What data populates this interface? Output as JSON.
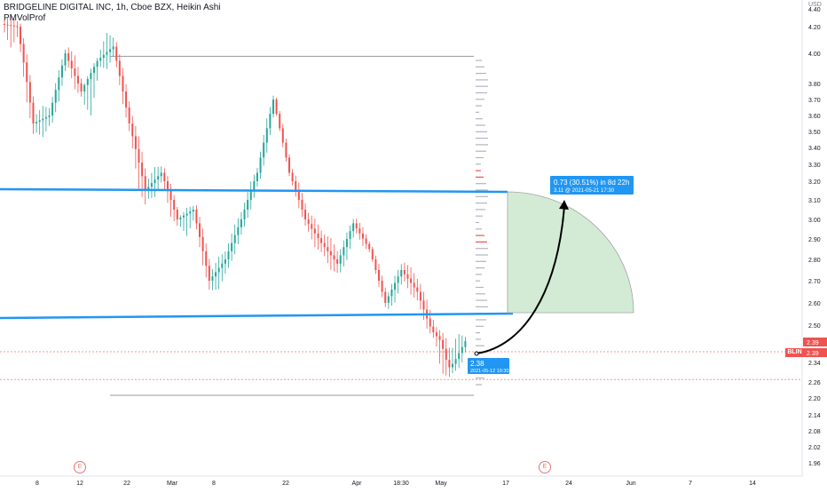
{
  "header": {
    "title": "BRIDGELINE DIGITAL INC, 1h, Cboe BZX, Heikin Ashi",
    "indicator": "PMVolProf"
  },
  "colors": {
    "up": "#26a69a",
    "down": "#ef5350",
    "channel": "#2196f3",
    "target_zone": "#c8e6c9",
    "label_bg": "#2196f3",
    "price_tag": "#ef5350"
  },
  "chart_data": {
    "type": "candlestick",
    "title": "BRIDGELINE DIGITAL INC, 1h, Cboe BZX, Heikin Ashi",
    "price_axis": {
      "unit": "USD",
      "ticks": [
        "4.40",
        "4.20",
        "4.00",
        "3.80",
        "3.70",
        "3.60",
        "3.50",
        "3.40",
        "3.30",
        "3.20",
        "3.10",
        "3.00",
        "2.90",
        "2.80",
        "2.70",
        "2.60",
        "2.50",
        "2.39",
        "2.34",
        "2.26",
        "2.20",
        "2.14",
        "2.08",
        "2.02",
        "1.96"
      ],
      "scale": "log",
      "ylim": [
        1.93,
        4.5
      ]
    },
    "time_axis": {
      "ticks": [
        "8",
        "12",
        "22",
        "Mar",
        "8",
        "22",
        "Apr",
        "18:30",
        "May",
        "17",
        "24",
        "Jun",
        "7",
        "14"
      ]
    },
    "levels": {
      "range_high": 3.98,
      "range_low": 2.21,
      "resistance": 3.15,
      "support": 2.55,
      "dashed_level": 2.27
    },
    "last_price": {
      "symbol": "BLIN",
      "value": "2.39",
      "label": "BLIN"
    },
    "projection": {
      "start_label_price": "2.38",
      "start_label_date": "2021-05-12 19:30",
      "end_label_main": "0.73 (30.51%) in 8d 22h",
      "end_label_sub": "3.11 @ 2021-05-21 17:30",
      "start_price": 2.38,
      "end_price": 3.11
    },
    "path": [
      [
        "4.23",
        "4.40",
        "3.90",
        "4.20"
      ],
      [
        "4.20",
        "4.25",
        "3.35",
        "3.55"
      ],
      [
        "3.55",
        "3.70",
        "3.40",
        "3.60"
      ],
      [
        "3.60",
        "4.05",
        "3.50",
        "4.00"
      ],
      [
        "4.00",
        "4.15",
        "3.60",
        "3.75"
      ],
      [
        "3.75",
        "4.00",
        "3.30",
        "3.95"
      ],
      [
        "3.95",
        "4.30",
        "3.80",
        "4.05"
      ],
      [
        "4.05",
        "4.10",
        "3.45",
        "3.55"
      ],
      [
        "3.55",
        "3.65",
        "2.90",
        "3.15"
      ],
      [
        "3.15",
        "3.35",
        "3.05",
        "3.25"
      ],
      [
        "3.25",
        "3.30",
        "2.85",
        "3.00"
      ],
      [
        "3.00",
        "3.10",
        "2.80",
        "3.05"
      ],
      [
        "3.05",
        "3.10",
        "2.60",
        "2.70"
      ],
      [
        "2.70",
        "2.85",
        "2.60",
        "2.80"
      ],
      [
        "2.80",
        "3.05",
        "2.75",
        "3.00"
      ],
      [
        "3.00",
        "3.30",
        "2.95",
        "3.25"
      ],
      [
        "3.25",
        "3.80",
        "3.15",
        "3.70"
      ],
      [
        "3.70",
        "3.75",
        "3.20",
        "3.25"
      ],
      [
        "3.25",
        "3.30",
        "2.95",
        "3.00"
      ],
      [
        "3.00",
        "3.05",
        "2.80",
        "2.88"
      ],
      [
        "2.88",
        "2.95",
        "2.70",
        "2.78"
      ],
      [
        "2.78",
        "3.00",
        "2.70",
        "2.98"
      ],
      [
        "2.98",
        "3.02",
        "2.80",
        "2.85"
      ],
      [
        "2.85",
        "2.90",
        "2.55",
        "2.60"
      ],
      [
        "2.60",
        "2.78",
        "2.52",
        "2.75"
      ],
      [
        "2.75",
        "2.80",
        "2.60",
        "2.65"
      ],
      [
        "2.65",
        "2.68",
        "2.40",
        "2.45"
      ],
      [
        "2.45",
        "2.50",
        "2.21",
        "2.32"
      ],
      [
        "2.32",
        "2.52",
        "2.28",
        "2.39"
      ]
    ]
  }
}
